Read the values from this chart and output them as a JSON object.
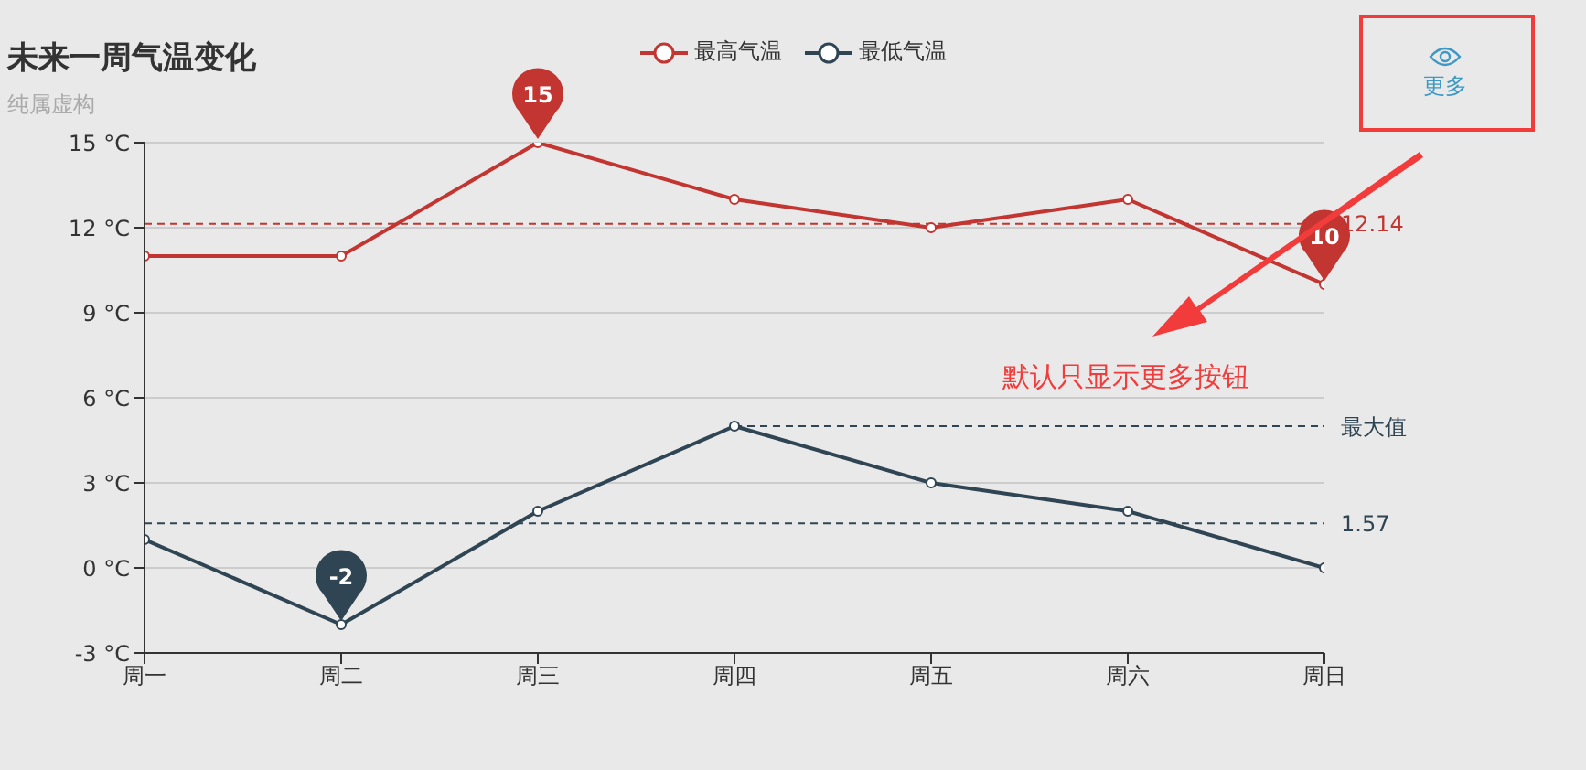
{
  "chart_data": {
    "type": "line",
    "title": "未来一周气温变化",
    "subtitle": "纯属虚构",
    "categories": [
      "周一",
      "周二",
      "周三",
      "周四",
      "周五",
      "周六",
      "周日"
    ],
    "series": [
      {
        "name": "最高气温",
        "color": "#c23531",
        "values": [
          11,
          11,
          15,
          13,
          12,
          13,
          10
        ]
      },
      {
        "name": "最低气温",
        "color": "#2f4554",
        "values": [
          1,
          -2,
          2,
          5,
          3,
          2,
          0
        ]
      },
      {
        "name": "最大值",
        "type": "line",
        "color": "#2f4554",
        "x": [
          "周四",
          "周日"
        ],
        "values": [
          5,
          5
        ],
        "line_style": "dashed",
        "marker": "none"
      }
    ],
    "ylim": [
      -3,
      15
    ],
    "yticks": [
      {
        "value": -3,
        "label": "-3 °C"
      },
      {
        "value": 0,
        "label": "0 °C"
      },
      {
        "value": 3,
        "label": "3 °C"
      },
      {
        "value": 6,
        "label": "6 °C"
      },
      {
        "value": 9,
        "label": "9 °C"
      },
      {
        "value": 12,
        "label": "12 °C"
      },
      {
        "value": 15,
        "label": "15 °C"
      }
    ],
    "ref_lines": [
      {
        "axis": "y",
        "value": 12.14,
        "label": "12.14",
        "color": "#c23531",
        "line_style": "dashed"
      },
      {
        "axis": "y",
        "value": 1.57,
        "label": "1.57",
        "color": "#2f4554",
        "line_style": "dashed"
      }
    ],
    "annotations": [
      {
        "text": "15",
        "x": "周三",
        "y": 15
      },
      {
        "text": "10",
        "x": "周日",
        "y": 10
      },
      {
        "text": "-2",
        "x": "周二",
        "y": -2
      },
      "更多",
      "默认只显示更多按钮"
    ],
    "grid": "y",
    "legend": "top",
    "marker": "circle",
    "line_style": "solid"
  }
}
